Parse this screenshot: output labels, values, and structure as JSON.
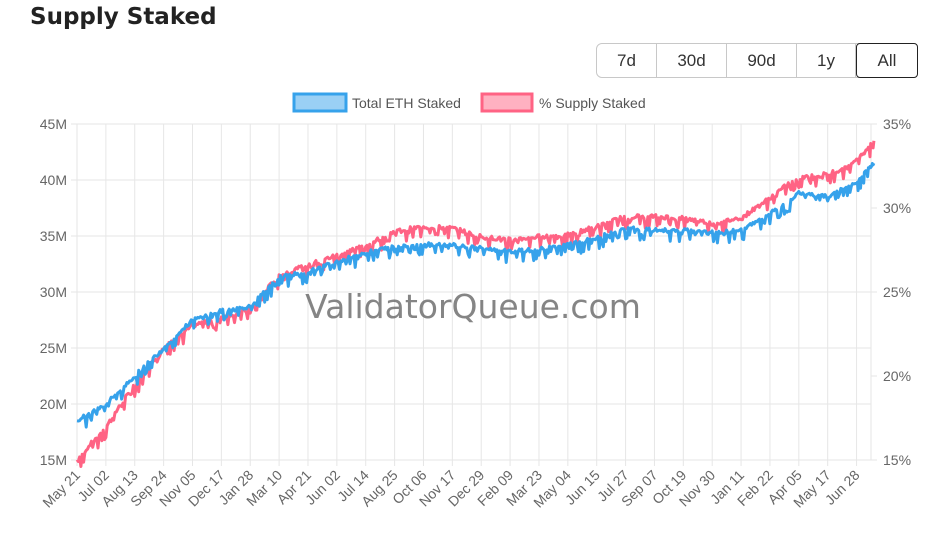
{
  "page": {
    "title": "Supply Staked"
  },
  "range_buttons": [
    {
      "label": "7d",
      "active": false
    },
    {
      "label": "30d",
      "active": false
    },
    {
      "label": "90d",
      "active": false
    },
    {
      "label": "1y",
      "active": false
    },
    {
      "label": "All",
      "active": true
    }
  ],
  "watermark": "ValidatorQueue.com",
  "chart_data": {
    "type": "line",
    "title": "",
    "xlabel": "",
    "ylabel": "",
    "x_dates": [
      "May 21",
      "Jul 02",
      "Aug 13",
      "Sep 24",
      "Nov 05",
      "Dec 17",
      "Jan 28",
      "Mar 10",
      "Apr 21",
      "Jun 02",
      "Jul 14",
      "Aug 25",
      "Oct 06",
      "Nov 17",
      "Dec 29",
      "Feb 09",
      "Mar 23",
      "May 04",
      "Jun 15",
      "Jul 27",
      "Sep 07",
      "Oct 19",
      "Nov 30",
      "Jan 11",
      "Feb 22",
      "Apr 05",
      "May 17",
      "Jun 28"
    ],
    "y_left": {
      "ticks": [
        "15M",
        "20M",
        "25M",
        "30M",
        "35M",
        "40M",
        "45M"
      ],
      "range": [
        15,
        45
      ],
      "unit": "M"
    },
    "y_right": {
      "ticks": [
        "15%",
        "20%",
        "25%",
        "30%",
        "35%"
      ],
      "range": [
        15,
        35
      ],
      "unit": "%"
    },
    "legend": {
      "placement": "top-center"
    },
    "grid": true,
    "series": [
      {
        "name": "Total ETH Staked",
        "axis": "left",
        "color": "#36a2eb",
        "fill": "#9ad0f5",
        "points": [
          [
            "May 21",
            18.5
          ],
          [
            "Jul 02",
            20.0
          ],
          [
            "Aug 13",
            22.5
          ],
          [
            "Sep 24",
            25.0
          ],
          [
            "Nov 05",
            27.5
          ],
          [
            "Dec 17",
            28.3
          ],
          [
            "Jan 28",
            28.7
          ],
          [
            "Mar 10",
            31.3
          ],
          [
            "Apr 21",
            31.8
          ],
          [
            "Jun 02",
            32.7
          ],
          [
            "Jul 14",
            33.5
          ],
          [
            "Aug 25",
            34.1
          ],
          [
            "Oct 06",
            34.3
          ],
          [
            "Nov 17",
            34.2
          ],
          [
            "Dec 29",
            33.9
          ],
          [
            "Feb 09",
            33.6
          ],
          [
            "Mar 23",
            33.8
          ],
          [
            "May 04",
            34.2
          ],
          [
            "Jun 15",
            34.8
          ],
          [
            "Jul 27",
            35.7
          ],
          [
            "Sep 07",
            35.5
          ],
          [
            "Oct 19",
            35.5
          ],
          [
            "Nov 30",
            35.3
          ],
          [
            "Jan 11",
            35.5
          ],
          [
            "Feb 22",
            37.0
          ],
          [
            "Apr 05",
            38.8
          ],
          [
            "May 17",
            38.5
          ],
          [
            "Jun 28",
            39.8
          ],
          [
            "end",
            41.5
          ]
        ]
      },
      {
        "name": "% Supply Staked",
        "axis": "right",
        "color": "#ff6384",
        "fill": "#ffb1c1",
        "points": [
          [
            "May 21",
            15.0
          ],
          [
            "Jul 02",
            17.0
          ],
          [
            "Aug 13",
            19.5
          ],
          [
            "Sep 24",
            21.7
          ],
          [
            "Nov 05",
            23.0
          ],
          [
            "Dec 17",
            23.5
          ],
          [
            "Jan 28",
            24.0
          ],
          [
            "Mar 10",
            26.0
          ],
          [
            "Apr 21",
            26.6
          ],
          [
            "Jun 02",
            27.2
          ],
          [
            "Jul 14",
            27.8
          ],
          [
            "Aug 25",
            28.6
          ],
          [
            "Oct 06",
            28.9
          ],
          [
            "Nov 17",
            28.8
          ],
          [
            "Dec 29",
            28.3
          ],
          [
            "Feb 09",
            28.1
          ],
          [
            "Mar 23",
            28.3
          ],
          [
            "May 04",
            28.4
          ],
          [
            "Jun 15",
            28.9
          ],
          [
            "Jul 27",
            29.5
          ],
          [
            "Sep 07",
            29.5
          ],
          [
            "Oct 19",
            29.4
          ],
          [
            "Nov 30",
            29.1
          ],
          [
            "Jan 11",
            29.4
          ],
          [
            "Feb 22",
            30.6
          ],
          [
            "Apr 05",
            31.9
          ],
          [
            "May 17",
            32.0
          ],
          [
            "Jun 28",
            32.8
          ],
          [
            "end",
            34.0
          ]
        ]
      }
    ]
  }
}
